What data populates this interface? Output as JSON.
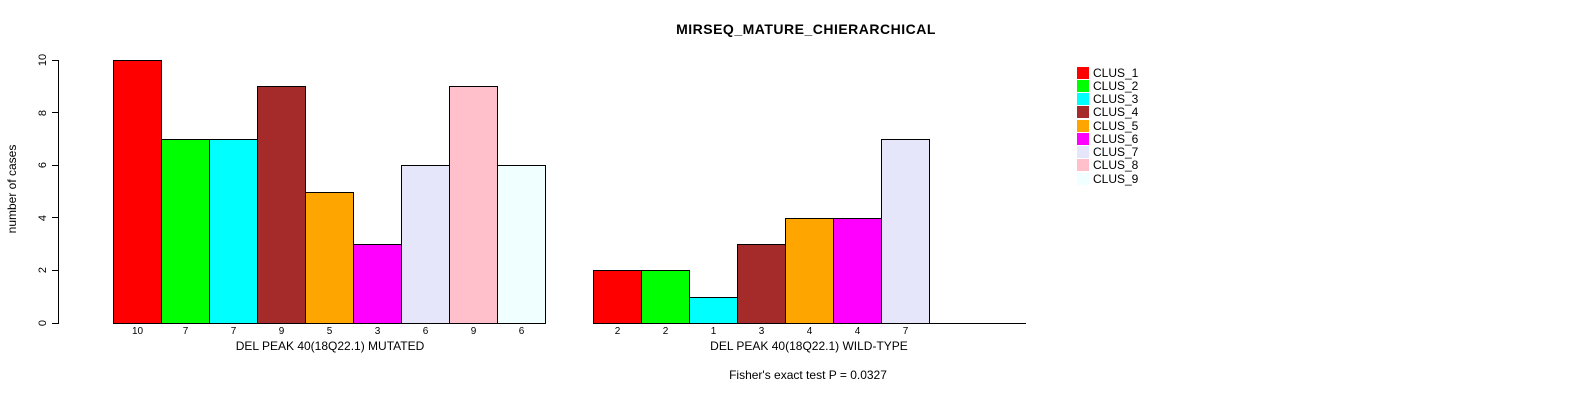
{
  "chart_data": {
    "type": "bar",
    "title": "MIRSEQ_MATURE_CHIERARCHICAL",
    "ylabel": "number of cases",
    "ylim": [
      0,
      10
    ],
    "yticks": [
      "0",
      "2",
      "4",
      "6",
      "8",
      "10"
    ],
    "grid": "off",
    "legend_position": "right",
    "categories": [
      "CLUS_1",
      "CLUS_2",
      "CLUS_3",
      "CLUS_4",
      "CLUS_5",
      "CLUS_6",
      "CLUS_7",
      "CLUS_8",
      "CLUS_9"
    ],
    "colors": [
      "#FF0000",
      "#00FF00",
      "#00FFFF",
      "#A52A2A",
      "#FFA500",
      "#FF00FF",
      "#E6E6FA",
      "#FFC0CB",
      "#F0FFFF"
    ],
    "groups": [
      {
        "label": "DEL PEAK 40(18Q22.1) MUTATED",
        "values": [
          10,
          7,
          7,
          9,
          5,
          3,
          6,
          9,
          6
        ]
      },
      {
        "label": "DEL PEAK 40(18Q22.1) WILD-TYPE",
        "values": [
          2,
          2,
          1,
          3,
          4,
          4,
          7,
          0,
          0
        ]
      }
    ],
    "annotation": "Fisher's exact test P = 0.0327"
  }
}
